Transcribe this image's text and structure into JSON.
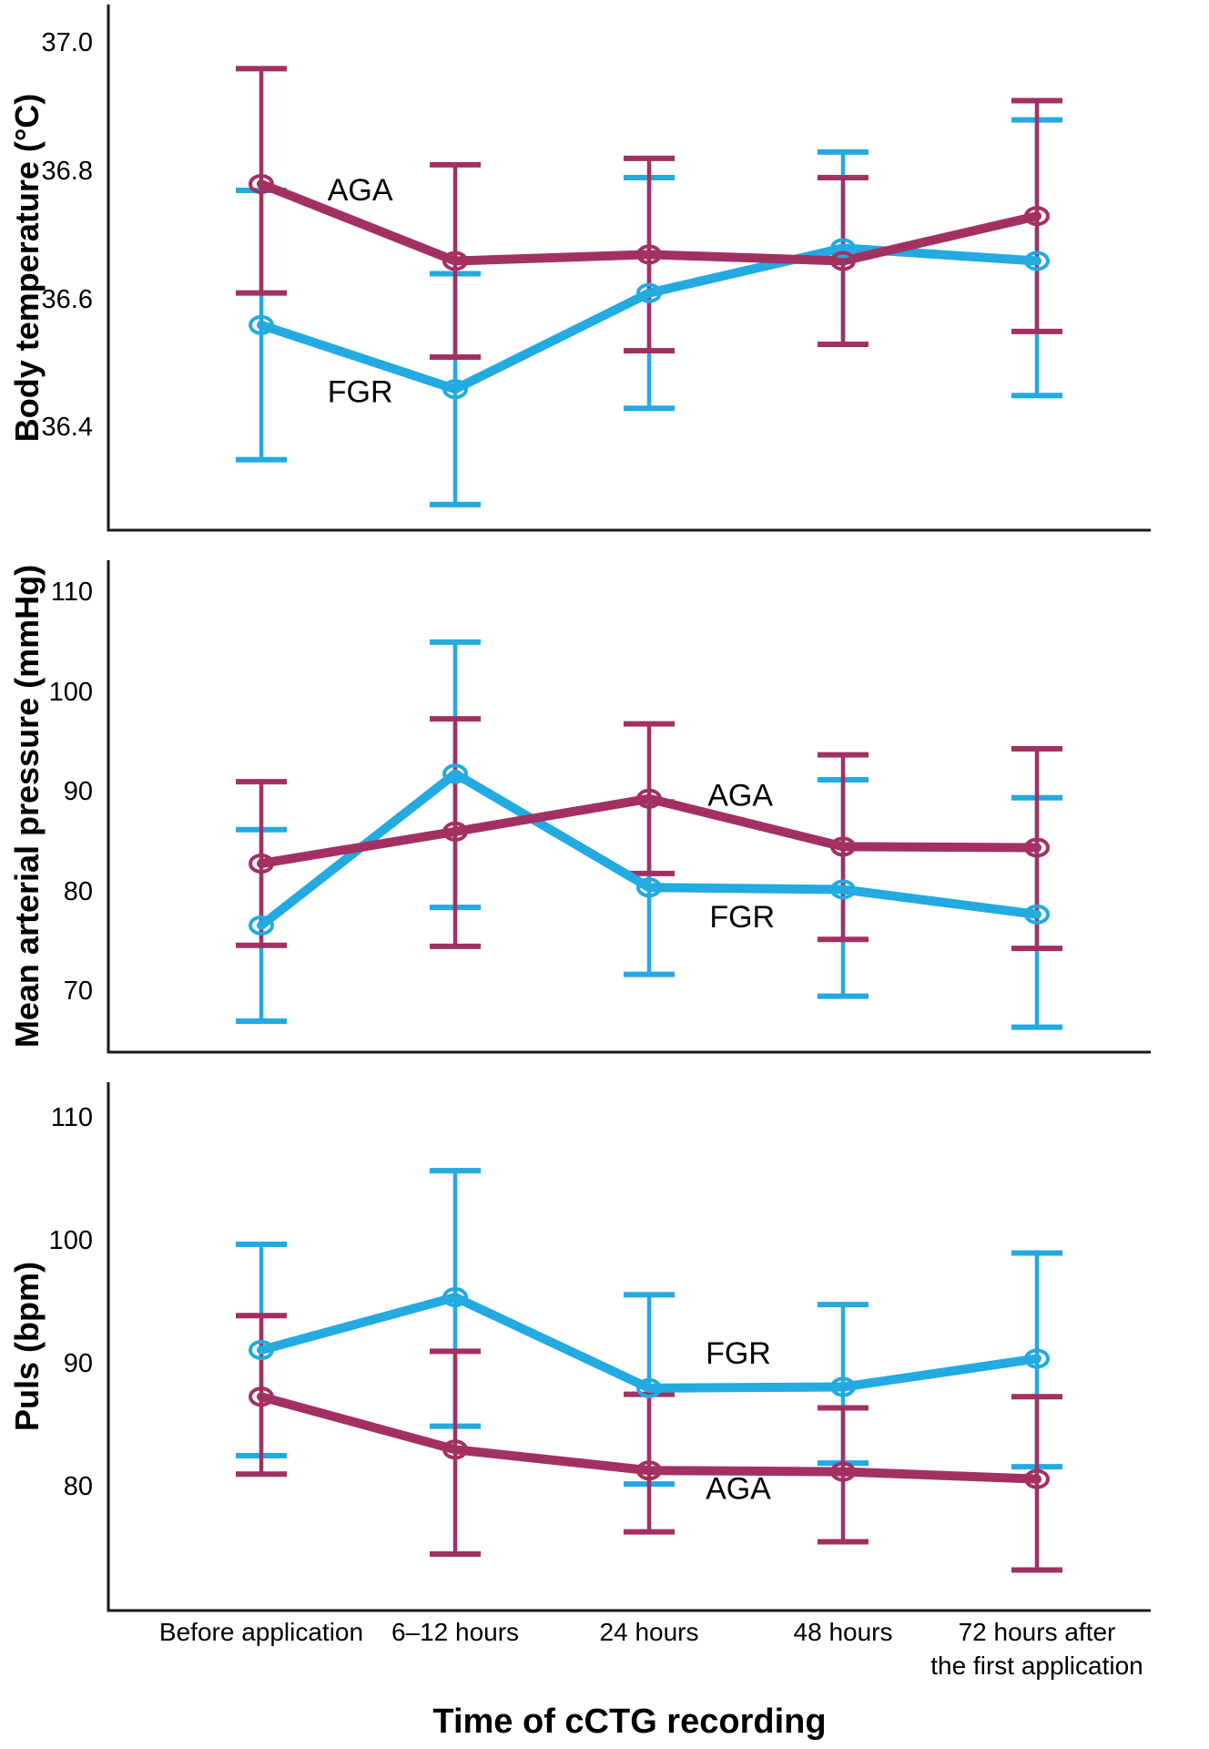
{
  "figure": {
    "xaxis_title": "Time of cCTG recording",
    "colors": {
      "aga": "#A33062",
      "fgr": "#22AAE1",
      "axis": "#1A1A1A"
    }
  },
  "chart_data": [
    {
      "type": "line",
      "ylabel": "Body temperature (°C)",
      "xlabel": "Time of cCTG recording",
      "categories": [
        "Before application",
        "6–12 hours",
        "24 hours",
        "48 hours",
        "72 hours after the first application"
      ],
      "ylim": [
        36.24,
        37.06
      ],
      "grid": false,
      "legend": "inline-annotations",
      "yticks": [
        {
          "label": "37.0",
          "value": 37.0
        },
        {
          "label": "36.8",
          "value": 36.8
        },
        {
          "label": "36.6",
          "value": 36.6
        },
        {
          "label": "36.4",
          "value": 36.4
        }
      ],
      "series": [
        {
          "name": "FGR",
          "color_key": "fgr",
          "values": [
            36.56,
            36.46,
            36.61,
            36.68,
            36.66
          ],
          "err_low": [
            36.35,
            36.28,
            36.43,
            36.53,
            36.45
          ],
          "err_high": [
            36.77,
            36.64,
            36.79,
            36.83,
            36.88
          ]
        },
        {
          "name": "AGA",
          "color_key": "aga",
          "values": [
            36.78,
            36.66,
            36.67,
            36.66,
            36.73
          ],
          "err_low": [
            36.61,
            36.51,
            36.52,
            36.53,
            36.55
          ],
          "err_high": [
            36.96,
            36.81,
            36.82,
            36.79,
            36.91
          ]
        }
      ],
      "annotations": [
        {
          "text": "AGA",
          "x": 0.51,
          "y": 36.77
        },
        {
          "text": "FGR",
          "x": 0.51,
          "y": 36.455
        }
      ]
    },
    {
      "type": "line",
      "ylabel": "Mean arterial pressure (mmHg)",
      "xlabel": "Time of cCTG recording",
      "categories": [
        "Before application",
        "6–12 hours",
        "24 hours",
        "48 hours",
        "72 hours after the first application"
      ],
      "ylim": [
        63.9,
        113.2
      ],
      "grid": false,
      "legend": "inline-annotations",
      "yticks": [
        {
          "label": "110",
          "value": 110
        },
        {
          "label": "100",
          "value": 100
        },
        {
          "label": "90",
          "value": 90
        },
        {
          "label": "80",
          "value": 80
        },
        {
          "label": "70",
          "value": 70
        }
      ],
      "series": [
        {
          "name": "FGR",
          "color_key": "fgr",
          "values": [
            76.6,
            91.8,
            80.4,
            80.2,
            77.7
          ],
          "err_low": [
            67.0,
            78.4,
            71.7,
            69.5,
            66.4
          ],
          "err_high": [
            86.2,
            105.0,
            89.0,
            91.2,
            89.4
          ]
        },
        {
          "name": "AGA",
          "color_key": "aga",
          "values": [
            82.8,
            86.0,
            89.3,
            84.5,
            84.4
          ],
          "err_low": [
            74.6,
            74.5,
            81.8,
            75.2,
            74.3
          ],
          "err_high": [
            91.0,
            97.3,
            96.8,
            93.7,
            94.3
          ]
        }
      ],
      "annotations": [
        {
          "text": "AGA",
          "x": 2.47,
          "y": 89.6
        },
        {
          "text": "FGR",
          "x": 2.48,
          "y": 77.4
        }
      ]
    },
    {
      "type": "line",
      "ylabel": "Puls (bpm)",
      "xlabel": "Time of cCTG recording",
      "categories": [
        "Before application",
        "6–12 hours",
        "24 hours",
        "48 hours",
        "72 hours after the first application"
      ],
      "ylim": [
        69.9,
        112.9
      ],
      "grid": false,
      "legend": "inline-annotations",
      "yticks": [
        {
          "label": "110",
          "value": 110
        },
        {
          "label": "100",
          "value": 100
        },
        {
          "label": "90",
          "value": 90
        },
        {
          "label": "80",
          "value": 80
        }
      ],
      "series": [
        {
          "name": "FGR",
          "color_key": "fgr",
          "values": [
            91.1,
            95.4,
            88.0,
            88.1,
            90.4
          ],
          "err_low": [
            82.5,
            84.9,
            80.2,
            81.9,
            81.6
          ],
          "err_high": [
            99.7,
            105.7,
            95.6,
            94.8,
            99.0
          ]
        },
        {
          "name": "AGA",
          "color_key": "aga",
          "values": [
            87.3,
            83.0,
            81.3,
            81.2,
            80.6
          ],
          "err_low": [
            81.0,
            74.5,
            76.3,
            75.5,
            73.2
          ],
          "err_high": [
            93.9,
            91.0,
            87.5,
            86.4,
            87.3
          ]
        }
      ],
      "annotations": [
        {
          "text": "FGR",
          "x": 2.46,
          "y": 90.8
        },
        {
          "text": "AGA",
          "x": 2.46,
          "y": 79.8
        }
      ]
    }
  ],
  "xaxis": {
    "tick_label_lines": [
      [
        "Before application"
      ],
      [
        "6–12 hours"
      ],
      [
        "24 hours"
      ],
      [
        "48 hours"
      ],
      [
        "72 hours after",
        "the first application"
      ]
    ]
  }
}
